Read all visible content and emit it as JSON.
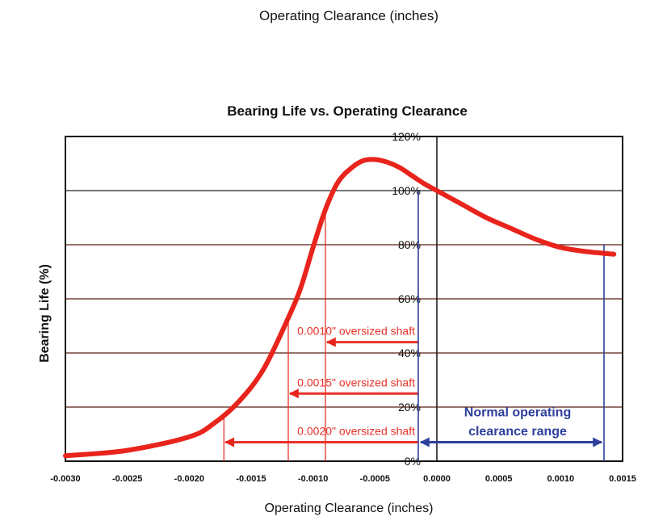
{
  "header": {
    "title": "Operating Clearance (inches)"
  },
  "chart_data": {
    "type": "line",
    "title": "Bearing Life vs. Operating Clearance",
    "xlabel": "Operating Clearance (inches)",
    "ylabel": "Bearing Life (%)",
    "xlim": [
      -0.003,
      0.0015
    ],
    "ylim": [
      0,
      120
    ],
    "x_ticks": [
      -0.003,
      -0.0025,
      -0.002,
      -0.0015,
      -0.001,
      -0.0005,
      0.0,
      0.0005,
      0.001,
      0.0015
    ],
    "x_tick_labels": [
      "-0.0030",
      "-0.0025",
      "-0.0020",
      "-0.0015",
      "-0.0010",
      "-0.0005",
      "0.0000",
      "0.0005",
      "0.0010",
      "0.0015"
    ],
    "y_ticks": [
      0,
      20,
      40,
      60,
      80,
      100,
      120
    ],
    "y_tick_labels": [
      "0%",
      "20%",
      "40%",
      "60%",
      "80%",
      "100%",
      "120%"
    ],
    "grid": "horizontal",
    "series": [
      {
        "color": "#e8241c",
        "x": [
          -0.003,
          -0.0025,
          -0.002,
          -0.0018,
          -0.0016,
          -0.0014,
          -0.0012,
          -0.0011,
          -0.001,
          -0.0009,
          -0.0008,
          -0.0007,
          -0.0006,
          -0.0005,
          -0.0004,
          -0.0003,
          -0.0002,
          -0.0001,
          0.0,
          0.0002,
          0.0004,
          0.0006,
          0.0008,
          0.001,
          0.0012,
          0.00143
        ],
        "y": [
          2,
          4,
          9,
          14,
          22,
          34,
          53,
          64,
          79,
          93,
          103,
          108,
          111,
          111.5,
          110.5,
          108.5,
          105.5,
          102.5,
          100,
          95,
          90,
          86,
          82,
          79,
          77.5,
          76.5
        ]
      }
    ],
    "annotations": [
      {
        "text": "0.0010\" oversized shaft",
        "color": "#e8322a",
        "x": -0.0009,
        "arrow_from_x": -0.00015,
        "y": 44
      },
      {
        "text": "0.0015\" oversized shaft",
        "color": "#e8322a",
        "x": -0.0012,
        "arrow_from_x": -0.00015,
        "y": 25
      },
      {
        "text": "0.0020\" oversized shaft",
        "color": "#e8322a",
        "x": -0.00172,
        "arrow_from_x": -0.00015,
        "y": 7
      }
    ],
    "normal_range": {
      "label_lines": [
        "Normal operating",
        "clearance range"
      ],
      "color": "#2e3f9c",
      "x_start": -0.00015,
      "x_end": 0.00135,
      "y_top_start": 100,
      "y_top_end": 80
    }
  }
}
